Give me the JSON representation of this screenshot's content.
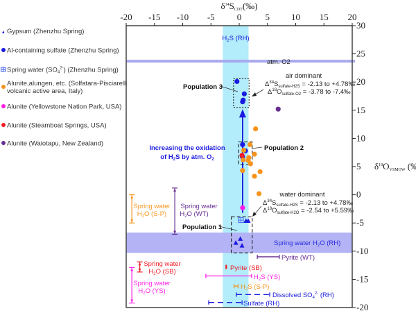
{
  "chart_data": {
    "type": "scatter",
    "xlabel": {
      "main": "δ",
      "sup": "34",
      "s": "S",
      "sub": "CDT",
      "unit": "(‰)"
    },
    "ylabel": {
      "main": "δ",
      "sup": "18",
      "s": "O",
      "sub": "VSMOW",
      "unit": " (‰)"
    },
    "xlim": [
      -20,
      20
    ],
    "ylim": [
      -20,
      30
    ],
    "xticks": [
      -20,
      -15,
      -10,
      -5,
      0,
      5,
      10,
      15,
      20
    ],
    "yticks": [
      30,
      25,
      20,
      15,
      10,
      5,
      0,
      -5,
      -10,
      -15,
      -20
    ],
    "x_axis_position": "top",
    "y_axis_position": "right",
    "grid": false,
    "legend_placement": "left",
    "colors": {
      "gypsum": "#1a1adf",
      "al_sulfate": "#1a1adf",
      "spring_so4": "#3a5cf0",
      "italy": "#f7941d",
      "yellowstone": "#ff1ee6",
      "steamboat": "#ee1c24",
      "waiotapu": "#662d91",
      "h2s_band": "#b3ecfa",
      "spring_rh_band": "#b3b3f5",
      "atm_o2": "#a8a8f0"
    },
    "series": [
      {
        "name": "Gypsum (Zhenzhu Spring)",
        "marker": "triangle",
        "color": "#1a1adf",
        "points": [
          [
            1.2,
            -4.6
          ],
          [
            1.6,
            -4.6
          ],
          [
            0.2,
            -7.8
          ],
          [
            -0.6,
            -8.5
          ],
          [
            0.5,
            -9.0
          ]
        ]
      },
      {
        "name": "Al-containing sulfate (Zhenzhu Spring)",
        "marker": "circle",
        "color": "#1a1adf",
        "points": [
          [
            -0.4,
            20.1
          ],
          [
            0.9,
            17.9
          ],
          [
            0.7,
            16.8
          ],
          [
            0.6,
            16.5
          ],
          [
            0.6,
            8.9
          ],
          [
            1.1,
            7.8
          ],
          [
            0.6,
            6.7
          ]
        ]
      },
      {
        "name": "Spring water (SO4 2-) (Zhenzhu Spring)",
        "marker": "boxed-cross",
        "color": "#3a5cf0",
        "points": [
          [
            0.3,
            -4.5
          ]
        ]
      },
      {
        "name": "Alunite,alungen, etc. (Solfatara-Pisciarelli volcanic active area, Italy)",
        "marker": "circle",
        "color": "#f7941d",
        "points": [
          [
            2.9,
            11.7
          ],
          [
            1.9,
            8.9
          ],
          [
            0.8,
            7.9
          ],
          [
            2.7,
            7.2
          ],
          [
            1.7,
            6.6
          ],
          [
            0.7,
            6.2
          ],
          [
            1.6,
            6.1
          ],
          [
            2.0,
            5.5
          ],
          [
            0.6,
            4.3
          ],
          [
            3.7,
            4.1
          ],
          [
            2.7,
            3.3
          ],
          [
            3.5,
            0.2
          ]
        ]
      },
      {
        "name": "Alunite (Yellowstone Nation Park, USA)",
        "marker": "circle",
        "color": "#ff1ee6",
        "points": [
          [
            0.6,
            -2.3
          ]
        ]
      },
      {
        "name": "Alunite (Steamboat Springs, USA)",
        "marker": "circle",
        "color": "#ee1c24",
        "points": [
          [
            0.5,
            7.0
          ]
        ]
      },
      {
        "name": "Alunite (Waiotapu, New Zealand)",
        "marker": "circle",
        "color": "#662d91",
        "points": [
          [
            6.9,
            15.2
          ]
        ]
      }
    ],
    "bands": [
      {
        "label": "H2S (RH)",
        "axis": "x",
        "range": [
          -2.9,
          1.65
        ],
        "color": "#b3ecfa"
      },
      {
        "label": "Spring water H2O (RH)",
        "axis": "y",
        "range": [
          -10.3,
          -6.7
        ],
        "color": "#b3b3f5"
      },
      {
        "label": "atm. O2",
        "axis": "y",
        "value": 23.7,
        "color": "#a8a8f0"
      }
    ],
    "x_ranges": [
      {
        "label": "Pyrite (WT)",
        "range": [
          3.2,
          7.1
        ],
        "y": -11,
        "color": "#662d91",
        "dashed": false
      },
      {
        "label": "Pyrite (SB)",
        "range": [
          -2.35,
          -2.25
        ],
        "y": -12.8,
        "color": "#ee1c24",
        "dashed": false
      },
      {
        "label": "H2S (YS)",
        "range": [
          -5.9,
          2.2
        ],
        "y": -14.4,
        "color": "#ff1ee6",
        "dashed": false
      },
      {
        "label": "H2S (S-P)",
        "range": [
          -0.9,
          -0.2
        ],
        "y": -16.2,
        "color": "#f7941d",
        "dashed": false
      },
      {
        "label": "Dissolved SO4 2- (RH)",
        "range": [
          -0.5,
          5.4
        ],
        "y": -17.7,
        "color": "#1a1adf",
        "dashed": true
      },
      {
        "label": "Sulfate (RH)",
        "range": [
          -5.4,
          0.5
        ],
        "y": -19.1,
        "color": "#1a1adf",
        "dashed": true
      }
    ],
    "y_ranges": [
      {
        "label": "Spring water H2O (S-P)",
        "range": [
          -5.0,
          0
        ],
        "x": -19,
        "color": "#f7941d"
      },
      {
        "label": "Spring water H2O (WT)",
        "range": [
          -7.0,
          1.2
        ],
        "x": -11.4,
        "color": "#662d91"
      },
      {
        "label": "Spring water H2O (SB)",
        "range": [
          -13.7,
          -11.9
        ],
        "x": -17.6,
        "color": "#ee1c24"
      },
      {
        "label": "Spring water H2O (YS)",
        "range": [
          -19.2,
          -12.9
        ],
        "x": -19,
        "color": "#ff1ee6"
      }
    ],
    "populations": [
      {
        "label": "Population 3",
        "x": [
          -1.0,
          1.75
        ],
        "y": [
          15.5,
          20.6
        ],
        "style": "dotted"
      },
      {
        "label": "Population 2",
        "x": [
          -0.1,
          2.3
        ],
        "y": [
          5.4,
          9.4
        ],
        "style": "dashed"
      },
      {
        "label": "Population 1",
        "x": [
          -1.4,
          2.3
        ],
        "y": [
          -10.3,
          -3.9
        ],
        "style": "dashed"
      }
    ],
    "oxidation_arrow": {
      "x": 0.6,
      "from": -3.2,
      "to": 14.7
    }
  },
  "legend": [
    {
      "text": "Gypsum (Zhenzhu Spring)"
    },
    {
      "text": "Al-containing sulfate (Zhenzhu Spring)"
    },
    {
      "pre": "Spring water (SO",
      "sub": "4",
      "sup": "2-",
      "post": ") (Zhenzhu Spring)"
    },
    {
      "line1": "Alunite,alungen, etc. (Solfatara-Pisciarelli",
      "line2": "volcanic active area, Italy)"
    },
    {
      "text": "Alunite (Yellowstone Nation Park, USA)"
    },
    {
      "text": "Alunite (Steamboat Springs, USA)"
    },
    {
      "text": "Alunite (Waiotapu, New Zealand)"
    }
  ],
  "annotations": {
    "h2s_rh": {
      "a": "H",
      "sub": "2",
      "b": "S (RH)"
    },
    "atm_o2": "atm. O2",
    "air": {
      "title": "air dominant",
      "l1": {
        "d": "Δ",
        "sup": "34",
        "e": "S",
        "sub": "sulfate-H2S",
        "val": " = -2.13 to +4.78‰"
      },
      "l2": {
        "d": "Δ",
        "sup": "18",
        "e": "O",
        "sub": "sulfate-O2",
        "val": " = -3.78 to -7.4‰"
      }
    },
    "water": {
      "title": "water dominant",
      "l1": {
        "d": "Δ",
        "sup": "34",
        "e": "S",
        "sub": "sulfate-H2S",
        "val": " = -2.13 to +4.78‰"
      },
      "l2": {
        "d": "Δ",
        "sup": "18",
        "e": "O",
        "sub": "sulfate-H2O",
        "val": " = -2.54 to +5.59‰"
      }
    },
    "pop1": "Population 1",
    "pop2": "Population 2",
    "pop3": "Population 3",
    "oxidation": {
      "l1": "Increasing the oxidation",
      "a": "of H",
      "sub1": "2",
      "b": "S by atm. O",
      "sub2": "2"
    },
    "spring_rh": {
      "a": "Spring water H",
      "sub": "2",
      "b": "O (RH)"
    },
    "spring_sp": {
      "l1": "Spring water",
      "a": "H",
      "sub": "2",
      "b": "O (S-P)"
    },
    "spring_wt": {
      "l1": "Spring water",
      "a": "H",
      "sub": "2",
      "b": "O (WT)"
    },
    "spring_sb": {
      "l1": "Spring water",
      "a": "H",
      "sub": "2",
      "b": "O (SB)"
    },
    "spring_ys": {
      "l1": "Spring water",
      "a": "H",
      "sub": "2",
      "b": "O (YS)"
    },
    "pyrite_wt": "Pyrite (WT)",
    "pyrite_sb": "Pyrite (SB)",
    "h2s_ys": {
      "a": "H",
      "sub": "2",
      "b": "S (YS)"
    },
    "h2s_sp": {
      "a": "H",
      "sub": "2",
      "b": "S (S-P)"
    },
    "dissolved": {
      "a": "Dissolved SO",
      "sub": "4",
      "sup": "2-",
      "b": " (RH)"
    },
    "sulfate_rh": "Sulfate (RH)"
  }
}
